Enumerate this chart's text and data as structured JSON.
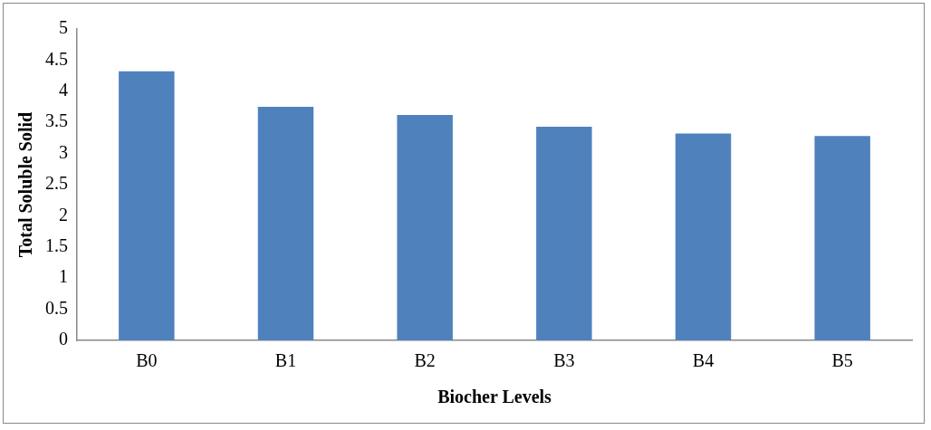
{
  "chart_data": {
    "type": "bar",
    "xlabel": "Biocher Levels",
    "ylabel": "Total Soluble Solid",
    "categories": [
      "B0",
      "B1",
      "B2",
      "B3",
      "B4",
      "B5"
    ],
    "values": [
      4.32,
      3.75,
      3.62,
      3.43,
      3.32,
      3.28
    ],
    "color": "#4f81bd",
    "ylim": [
      0,
      5
    ],
    "yticks": [
      0,
      0.5,
      1,
      1.5,
      2,
      2.5,
      3,
      3.5,
      4,
      4.5,
      5
    ],
    "grid": false,
    "legend": false
  }
}
